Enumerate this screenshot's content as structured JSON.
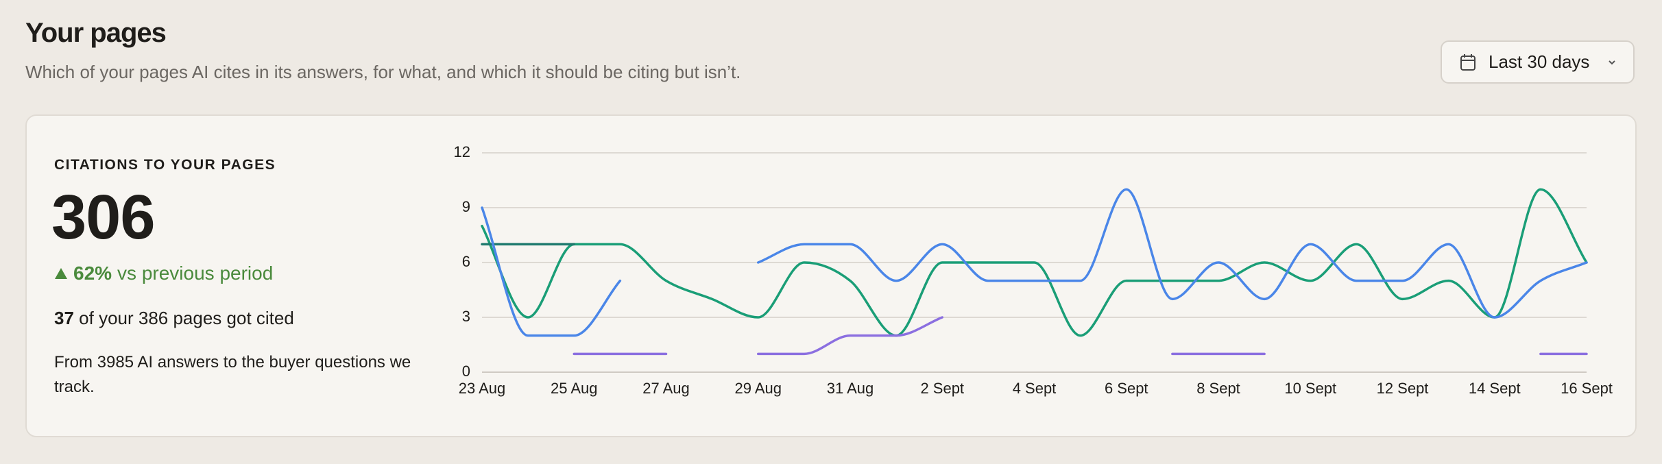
{
  "header": {
    "title": "Your pages",
    "subtitle": "Which of your pages AI cites in its answers, for what, and which it should be citing but isn’t.",
    "range_button": "Last 30 days"
  },
  "card": {
    "heading": "CITATIONS TO YOUR PAGES",
    "total": "306",
    "change": "62%",
    "change_text": "vs previous period",
    "cited_count": "37",
    "cited_text": "of your 386 pages got cited",
    "note": "From 3985 AI answers to the buyer questions we track."
  },
  "chart_data": {
    "type": "line",
    "categories": [
      "23 Aug",
      null,
      "25 Aug",
      null,
      "27 Aug",
      null,
      "29 Aug",
      null,
      "31 Aug",
      null,
      "2 Sept",
      null,
      "4 Sept",
      null,
      "6 Sept",
      null,
      "8 Sept",
      null,
      "10 Sept",
      null,
      "12 Sept",
      null,
      "14 Sept",
      null,
      "16 Sept"
    ],
    "series": [
      {
        "color": "#1a9e77",
        "values": [
          8,
          3,
          7,
          7,
          5,
          4,
          3,
          6,
          5,
          2,
          6,
          6,
          6,
          2,
          5,
          5,
          5,
          6,
          5,
          7,
          4,
          5,
          3,
          10,
          6
        ]
      },
      {
        "color": "#1f7a6e",
        "values": [
          7,
          7,
          7,
          null,
          null,
          null,
          null,
          null,
          null,
          null,
          null,
          null,
          null,
          null,
          null,
          null,
          null,
          null,
          null,
          null,
          null,
          null,
          null,
          null,
          null
        ]
      },
      {
        "color": "#4a86e8",
        "values": [
          9,
          2,
          2,
          5,
          null,
          null,
          6,
          7,
          7,
          5,
          7,
          5,
          5,
          5,
          10,
          4,
          6,
          4,
          7,
          5,
          5,
          7,
          3,
          5,
          6
        ]
      },
      {
        "color": "#8b6fe0",
        "values": [
          null,
          null,
          1,
          1,
          1,
          null,
          1,
          1,
          2,
          2,
          3,
          null,
          null,
          null,
          null,
          1,
          1,
          1,
          null,
          null,
          null,
          null,
          null,
          1,
          1
        ]
      }
    ],
    "ylim": [
      0,
      12
    ],
    "yticks": [
      0,
      3,
      6,
      9,
      12
    ],
    "grid": true
  }
}
